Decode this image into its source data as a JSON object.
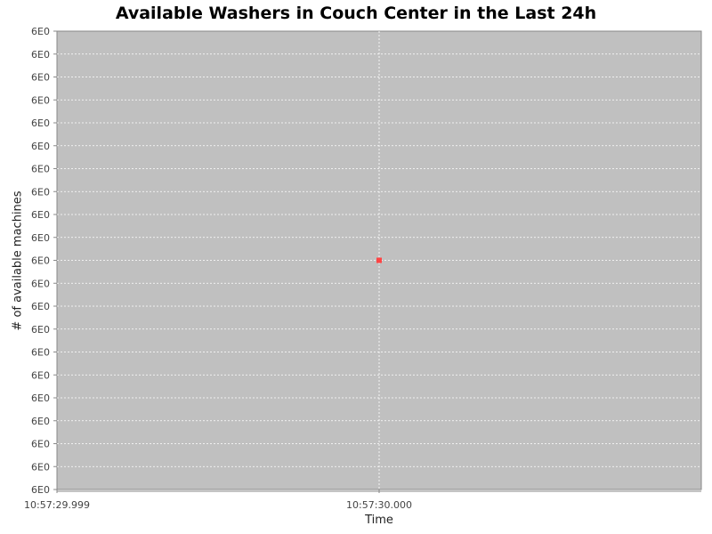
{
  "chart_data": {
    "type": "scatter",
    "title": "Available Washers in Couch Center in the Last 24h",
    "xlabel": "Time",
    "ylabel": "# of available machines",
    "x_tick_labels": [
      "10:57:29.999",
      "10:57:30.000"
    ],
    "y_tick_labels": [
      "6E0",
      "6E0",
      "6E0",
      "6E0",
      "6E0",
      "6E0",
      "6E0",
      "6E0",
      "6E0",
      "6E0",
      "6E0",
      "6E0",
      "6E0",
      "6E0",
      "6E0",
      "6E0",
      "6E0",
      "6E0",
      "6E0",
      "6E0",
      "6E0"
    ],
    "series": [
      {
        "points": [
          {
            "x": "10:57:30.000",
            "y": 6
          }
        ]
      }
    ],
    "grid": true,
    "legend": "none",
    "colors": {
      "plot_background": "#c0c0c0",
      "gridline": "#ffffff",
      "marker": "#ff4444",
      "axis": "#888888"
    }
  }
}
